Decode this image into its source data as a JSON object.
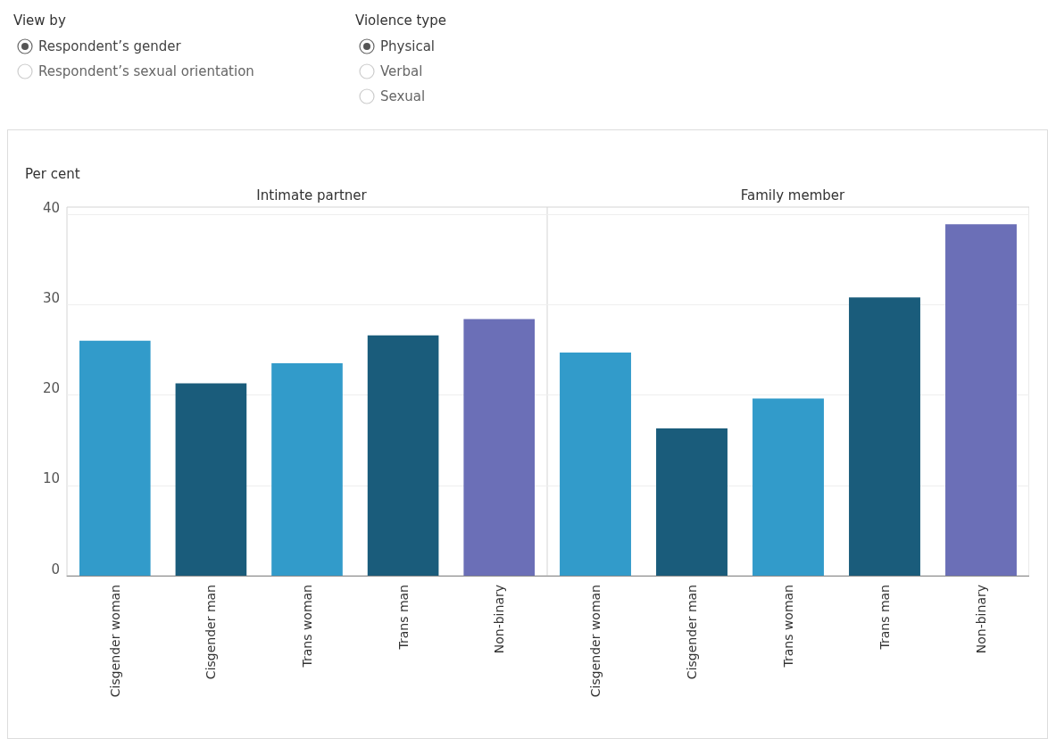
{
  "chart_data": [
    {
      "type": "bar",
      "title": "Intimate partner",
      "ylabel": "Per cent",
      "categories": [
        "Cisgender woman",
        "Cisgender man",
        "Trans woman",
        "Trans man",
        "Non-binary"
      ],
      "values": [
        26.0,
        21.3,
        23.5,
        26.6,
        28.4
      ],
      "colors": [
        "#329bca",
        "#1a5c7b",
        "#329bca",
        "#1a5c7b",
        "#6b6fb7"
      ],
      "ylim": [
        0,
        40.8
      ],
      "yticks": [
        0,
        10,
        20,
        30,
        40
      ],
      "grid": "y",
      "annotations": [
        "View by",
        "Respondent’s gender",
        "Respondent’s sexual orientation",
        "Violence type",
        "Physical",
        "Verbal",
        "Sexual"
      ]
    },
    {
      "type": "bar",
      "title": "Family member",
      "categories": [
        "Cisgender woman",
        "Cisgender man",
        "Trans woman",
        "Trans man",
        "Non-binary"
      ],
      "values": [
        24.7,
        16.3,
        19.6,
        30.8,
        38.9
      ],
      "colors": [
        "#329bca",
        "#1a5c7b",
        "#329bca",
        "#1a5c7b",
        "#6b6fb7"
      ],
      "ylim": [
        0,
        40.8
      ],
      "yticks": [
        0,
        10,
        20,
        30,
        40
      ],
      "grid": "y",
      "tick_labels": "x"
    }
  ]
}
